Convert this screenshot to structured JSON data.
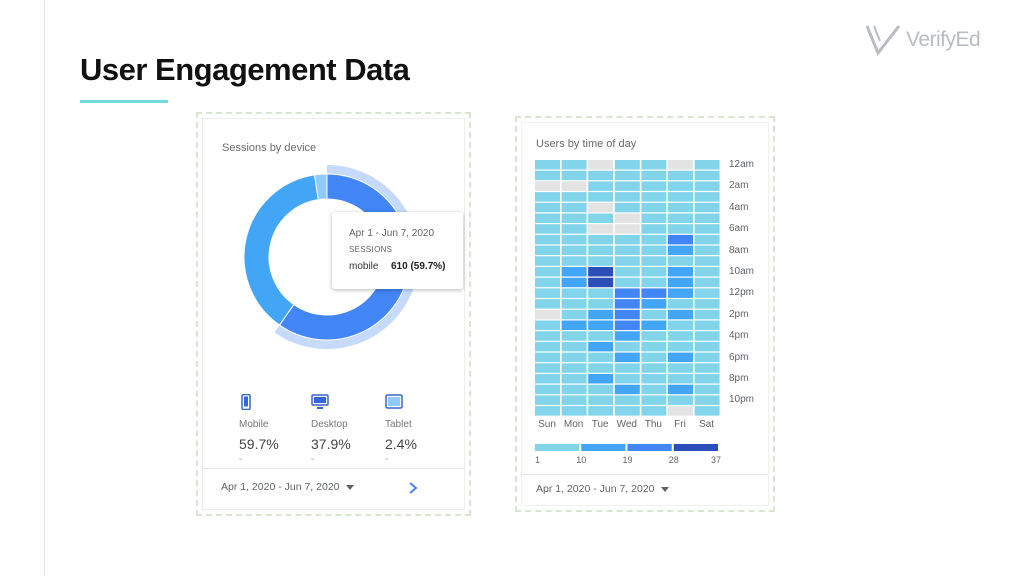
{
  "slide": {
    "title": "User Engagement Data",
    "logo_text": "VerifyEd"
  },
  "chart_data": [
    {
      "type": "pie",
      "title": "Sessions by device",
      "categories": [
        "Mobile",
        "Desktop",
        "Tablet"
      ],
      "values": [
        59.7,
        37.9,
        2.4
      ],
      "percent_labels": [
        "59.7%",
        "37.9%",
        "2.4%"
      ],
      "dash_labels": [
        "-",
        "-",
        "-"
      ],
      "colors": [
        "#4285f4",
        "#42a5f5",
        "#90caf9"
      ],
      "highlighted": "Mobile",
      "tooltip": {
        "date_range": "Apr 1 - Jun 7, 2020",
        "metric": "SESSIONS",
        "category": "mobile",
        "value": "610 (59.7%)"
      },
      "footer_date": "Apr 1, 2020 - Jun 7, 2020",
      "icons": [
        "phone-icon",
        "desktop-icon",
        "tablet-icon",
        "chevron-right-icon",
        "caret-down-icon"
      ]
    },
    {
      "type": "heatmap",
      "title": "Users by time of day",
      "x": [
        "Sun",
        "Mon",
        "Tue",
        "Wed",
        "Thu",
        "Fri",
        "Sat"
      ],
      "y_tick_labels": [
        "12am",
        "2am",
        "4am",
        "6am",
        "8am",
        "10am",
        "12pm",
        "2pm",
        "4pm",
        "6pm",
        "8pm",
        "10pm"
      ],
      "legend_ticks": [
        "1",
        "10",
        "19",
        "28",
        "37"
      ],
      "legend_colors": [
        "#81d4ea",
        "#42a5f5",
        "#4285f4",
        "#2a4fb8"
      ],
      "empty_color": "#e3e3e3",
      "values": [
        [
          5,
          5,
          0,
          5,
          5,
          0,
          5
        ],
        [
          5,
          5,
          5,
          5,
          5,
          5,
          5
        ],
        [
          0,
          0,
          5,
          5,
          5,
          5,
          5
        ],
        [
          5,
          5,
          5,
          5,
          5,
          5,
          5
        ],
        [
          5,
          5,
          0,
          5,
          5,
          5,
          5
        ],
        [
          5,
          5,
          5,
          0,
          5,
          5,
          5
        ],
        [
          5,
          5,
          0,
          0,
          5,
          5,
          5
        ],
        [
          5,
          5,
          5,
          5,
          5,
          22,
          5
        ],
        [
          5,
          5,
          5,
          5,
          5,
          14,
          5
        ],
        [
          5,
          5,
          5,
          5,
          5,
          5,
          5
        ],
        [
          5,
          14,
          37,
          5,
          5,
          14,
          5
        ],
        [
          5,
          14,
          37,
          5,
          5,
          14,
          5
        ],
        [
          5,
          5,
          5,
          22,
          22,
          14,
          5
        ],
        [
          5,
          5,
          5,
          22,
          14,
          5,
          5
        ],
        [
          0,
          5,
          14,
          22,
          5,
          14,
          5
        ],
        [
          5,
          14,
          14,
          22,
          14,
          5,
          5
        ],
        [
          5,
          5,
          5,
          14,
          5,
          5,
          5
        ],
        [
          5,
          5,
          14,
          5,
          5,
          5,
          5
        ],
        [
          5,
          5,
          5,
          14,
          5,
          14,
          5
        ],
        [
          5,
          5,
          5,
          5,
          5,
          5,
          5
        ],
        [
          5,
          5,
          14,
          5,
          5,
          5,
          5
        ],
        [
          5,
          5,
          5,
          14,
          5,
          14,
          5
        ],
        [
          5,
          5,
          5,
          5,
          5,
          5,
          5
        ],
        [
          5,
          5,
          5,
          5,
          5,
          0,
          5
        ]
      ],
      "footer_date": "Apr 1, 2020 - Jun 7, 2020"
    }
  ]
}
